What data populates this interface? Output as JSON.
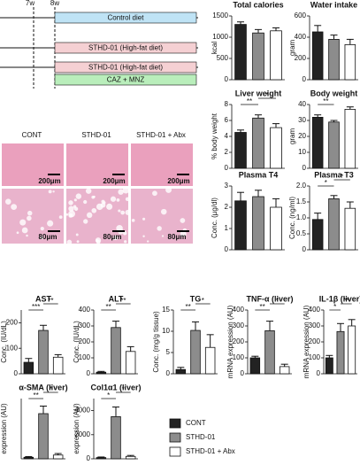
{
  "diagram": {
    "timeline": [
      "7w",
      "8w"
    ],
    "bars": [
      {
        "label": "Control diet",
        "color": "#bfe3f5"
      },
      {
        "label": "STHD-01 (High-fat diet)",
        "color": "#f5d0d3"
      },
      {
        "label": "STHD-01 (High-fat diet)",
        "color": "#f5d0d3"
      },
      {
        "label": "CAZ + MNZ",
        "color": "#b9eebb"
      }
    ]
  },
  "histology": {
    "groups": [
      "CONT",
      "STHD-01",
      "STHD-01 + Abx"
    ],
    "scale_top": [
      "200μm",
      "200μm",
      "200μm"
    ],
    "scale_bottom": [
      "80μm",
      "80μm",
      "80μm"
    ]
  },
  "legend": {
    "entries": [
      "CONT",
      "STHD-01",
      "STHD-01 + Abx"
    ],
    "colors": [
      "#222222",
      "#8c8c8c",
      "#ffffff"
    ]
  },
  "chart_data": [
    {
      "type": "bar",
      "title": "Total calories",
      "ylabel": "kcal",
      "values": [
        1300,
        1100,
        1150
      ],
      "errors": [
        60,
        80,
        70
      ],
      "ylim": [
        0,
        1500
      ],
      "yticks": [
        0,
        500,
        1000,
        1500
      ],
      "significance": []
    },
    {
      "type": "bar",
      "title": "Water intake",
      "ylabel": "gram",
      "values": [
        450,
        380,
        330
      ],
      "errors": [
        60,
        40,
        50
      ],
      "ylim": [
        0,
        600
      ],
      "yticks": [
        0,
        200,
        400,
        600
      ],
      "significance": []
    },
    {
      "type": "bar",
      "title": "Liver weight",
      "ylabel": "% body weight",
      "values": [
        4.5,
        6.3,
        5.1
      ],
      "errors": [
        0.3,
        0.4,
        0.5
      ],
      "ylim": [
        0,
        8
      ],
      "yticks": [
        0,
        2,
        4,
        6,
        8
      ],
      "significance": [
        "**",
        "*"
      ]
    },
    {
      "type": "bar",
      "title": "Body weight",
      "ylabel": "gram",
      "values": [
        32,
        29,
        37
      ],
      "errors": [
        1.5,
        1,
        1.5
      ],
      "ylim": [
        0,
        40
      ],
      "yticks": [
        0,
        10,
        20,
        30,
        40
      ],
      "significance": [
        "**"
      ]
    },
    {
      "type": "bar",
      "title": "Plasma T4",
      "ylabel": "Conc. (µg/dl)",
      "values": [
        2.3,
        2.5,
        2.0
      ],
      "errors": [
        0.4,
        0.3,
        0.4
      ],
      "ylim": [
        0,
        3
      ],
      "yticks": [
        0,
        1,
        2,
        3
      ],
      "significance": []
    },
    {
      "type": "bar",
      "title": "Plasma T3",
      "ylabel": "Conc. (ng/ml)",
      "values": [
        0.95,
        1.6,
        1.3
      ],
      "errors": [
        0.2,
        0.1,
        0.2
      ],
      "ylim": [
        0,
        2
      ],
      "yticks": [
        0,
        {
          "value": 0.5,
          "label": "0.5"
        },
        {
          "value": 1,
          "label": "1.0"
        },
        {
          "value": 1.5,
          "label": "1.5"
        },
        {
          "value": 2,
          "label": "2.0"
        }
      ],
      "significance": [
        "*",
        "*"
      ]
    },
    {
      "type": "bar",
      "title": "AST",
      "ylabel": "Conc. (IU/dL)",
      "values": [
        45,
        170,
        65
      ],
      "errors": [
        15,
        20,
        10
      ],
      "ylim": [
        0,
        250
      ],
      "yticks": [
        0,
        100,
        200
      ],
      "significance": [
        "***",
        "**"
      ]
    },
    {
      "type": "bar",
      "title": "ALT",
      "ylabel": "Conc. (IU/dL)",
      "values": [
        10,
        290,
        140
      ],
      "errors": [
        5,
        40,
        30
      ],
      "ylim": [
        0,
        400
      ],
      "yticks": [
        0,
        100,
        200,
        300,
        400
      ],
      "significance": [
        "**",
        "**"
      ]
    },
    {
      "type": "bar",
      "title": "TG",
      "ylabel": "Conc. (mg/g tissue)",
      "values": [
        1,
        10.2,
        6.2
      ],
      "errors": [
        0.5,
        2,
        3
      ],
      "ylim": [
        0,
        15
      ],
      "yticks": [
        0,
        5,
        10,
        15
      ],
      "significance": [
        "**",
        "*"
      ]
    },
    {
      "type": "bar",
      "title": "TNF-α (liver)",
      "ylabel": "mRNA expression (AU)",
      "values": [
        100,
        270,
        45
      ],
      "errors": [
        10,
        60,
        15
      ],
      "ylim": [
        0,
        400
      ],
      "yticks": [
        0,
        100,
        200,
        300,
        400
      ],
      "significance": [
        "**",
        "*"
      ]
    },
    {
      "type": "bar",
      "title": "IL-1β (liver)",
      "ylabel": "mRNA expression (AU)",
      "values": [
        100,
        265,
        300
      ],
      "errors": [
        15,
        50,
        40
      ],
      "ylim": [
        0,
        400
      ],
      "yticks": [
        0,
        100,
        200,
        300,
        400
      ],
      "significance": [
        "*",
        "**"
      ]
    },
    {
      "type": "bar",
      "title": "α-SMA (liver)",
      "ylabel": "expression (AU)",
      "values": [
        20,
        600,
        50
      ],
      "errors": [
        10,
        100,
        20
      ],
      "ylim": [
        0,
        800
      ],
      "yticks": [],
      "significance": [
        "**",
        "*"
      ]
    },
    {
      "type": "bar",
      "title": "Col1α1 (liver)",
      "ylabel": "expression (AU)",
      "values": [
        100,
        3500,
        200
      ],
      "errors": [
        50,
        800,
        80
      ],
      "ylim": [
        0,
        5000
      ],
      "yticks": [
        0,
        2000,
        4000
      ],
      "significance": [
        "*",
        "*"
      ]
    }
  ]
}
